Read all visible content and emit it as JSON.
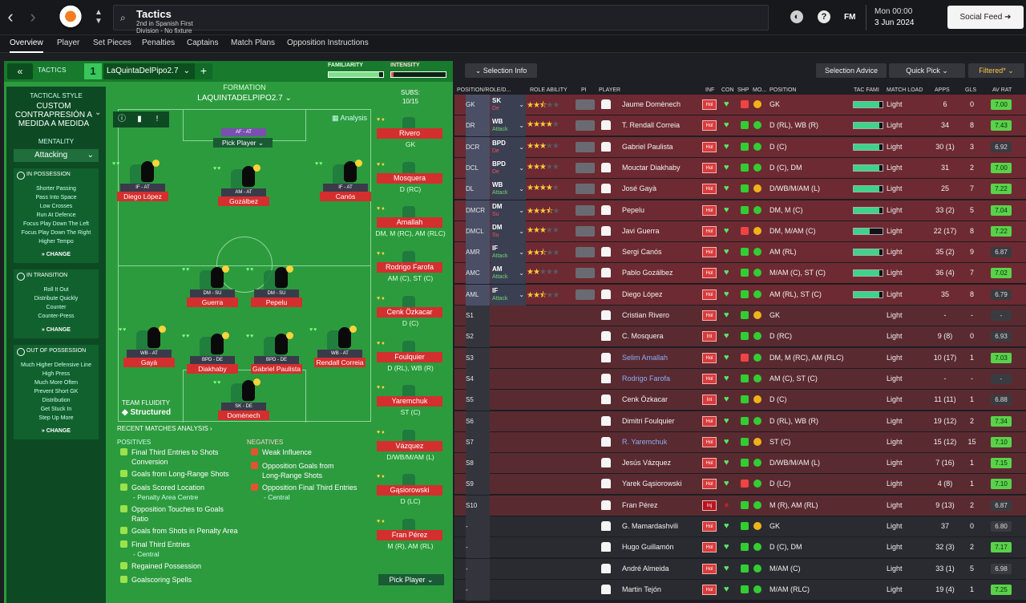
{
  "app": {
    "title": "Tactics",
    "subtitle": "2nd in Spanish First Division - No fixture scheduled.",
    "fm": "FM",
    "time": "Mon 00:00",
    "date": "3 Jun 2024",
    "social": "Social Feed",
    "back_icon": "chevron-left-icon",
    "fwd_icon": "chevron-right-icon"
  },
  "tabs": [
    "Overview",
    "Player",
    "Set Pieces",
    "Penalties",
    "Captains",
    "Match Plans",
    "Opposition Instructions"
  ],
  "tactic": {
    "label": "TACTICS",
    "number": "1",
    "name": "LaQuintaDelPipo2.7",
    "add": "+",
    "familiarity_label": "FAMILIARITY",
    "intensity_label": "INTENSITY",
    "familiarity": 0.92,
    "intensity": 0.05,
    "familiarity_color": "#7ee089",
    "intensity_color": "#e55050"
  },
  "style": {
    "title": "TACTICAL STYLE",
    "value": "CUSTOM CONTRAPRESIÓN A MEDIDA A MEDIDA",
    "mentality_label": "MENTALITY",
    "mentality": "Attacking",
    "possession": {
      "title": "IN POSSESSION",
      "items": [
        "Shorter Passing",
        "Pass Into Space",
        "Low Crosses",
        "Run At Defence",
        "Focus Play Down The Left",
        "Focus Play Down The Right",
        "Higher Tempo"
      ],
      "change": "CHANGE"
    },
    "transition": {
      "title": "IN TRANSITION",
      "items": [
        "Roll It Out",
        "Distribute Quickly",
        "Counter",
        "Counter-Press"
      ],
      "change": "CHANGE"
    },
    "oop": {
      "title": "OUT OF POSSESSION",
      "items": [
        "Much Higher Defensive Line",
        "High Press",
        "Much More Often",
        "Prevent Short GK",
        "Distribution",
        "Get Stuck In",
        "Step Up More"
      ],
      "change": "CHANGE"
    }
  },
  "formation": {
    "label": "FORMATION",
    "name": "LAQUINTADELPIPO2.7",
    "analysis": "Analysis",
    "gk_role": "AF - AT",
    "pick": "Pick Player"
  },
  "pitch_players": [
    {
      "role": "IF - AT",
      "name": "Diego López"
    },
    {
      "role": "AM - AT",
      "name": "Gozálbez"
    },
    {
      "role": "IF - AT",
      "name": "Canós"
    },
    {
      "role": "DM - SU",
      "name": "Guerra"
    },
    {
      "role": "DM - SU",
      "name": "Pepelu"
    },
    {
      "role": "WB - AT",
      "name": "Gayà"
    },
    {
      "role": "BPD - DE",
      "name": "Diakhaby"
    },
    {
      "role": "BPD - DE",
      "name": "Gabriel Paulista"
    },
    {
      "role": "WB - AT",
      "name": "Rendall Correia"
    },
    {
      "role": "SK - DE",
      "name": "Domènech"
    }
  ],
  "fluidity": {
    "label": "TEAM FLUIDITY",
    "value": "Structured"
  },
  "recent": {
    "title": "RECENT MATCHES ANALYSIS",
    "positives_label": "POSITIVES",
    "negatives_label": "NEGATIVES",
    "positives": [
      "Final Third Entries to Shots",
      "Conversion",
      "Goals from Long-Range Shots",
      "Goals Scored Location",
      "- Penalty Area Centre",
      "Opposition Touches to Goals",
      "Ratio",
      "Goals from Shots in Penalty Area",
      "Final Third Entries",
      "- Central",
      "Regained Possession",
      "Goalscoring Spells"
    ],
    "negatives": [
      "Weak Influence",
      "Opposition Goals from",
      "Long-Range Shots",
      "Opposition Final Third Entries",
      "- Central"
    ]
  },
  "subs": {
    "label": "SUBS:",
    "count": "10/15",
    "pick": "Pick Player",
    "list": [
      {
        "name": "Rivero",
        "pos": "GK"
      },
      {
        "name": "Mosquera",
        "pos": "D (RC)"
      },
      {
        "name": "Amallah",
        "pos": "DM, M (RC), AM (RLC)"
      },
      {
        "name": "Rodrigo Farofa",
        "pos": "AM (C), ST (C)"
      },
      {
        "name": "Cenk Özkacar",
        "pos": "D (C)"
      },
      {
        "name": "Foulquier",
        "pos": "D (RL), WB (R)"
      },
      {
        "name": "Yaremchuk",
        "pos": "ST (C)"
      },
      {
        "name": "Vázquez",
        "pos": "D/WB/M/AM (L)"
      },
      {
        "name": "Gąsiorowski",
        "pos": "D (LC)"
      },
      {
        "name": "Fran Pérez",
        "pos": "M (R), AM (RL)"
      }
    ]
  },
  "right": {
    "selection_info": "Selection Info",
    "selection_advice": "Selection Advice",
    "quick_pick": "Quick Pick",
    "filtered": "Filtered*",
    "headers": [
      "POSITION/ROLE/D...",
      "ROLE ABILITY",
      "PI",
      "PLAYER",
      "INF",
      "CON",
      "SHP",
      "MO...",
      "POSITION",
      "TAC FAMI",
      "MATCH LOAD",
      "APPS",
      "GLS",
      "AV RAT"
    ]
  },
  "rows": [
    {
      "slot": "GK",
      "role": "SK",
      "duty": "De",
      "stars": 2.5,
      "name": "Jaume Domènech",
      "inf": "Hol",
      "pos": "GK",
      "fam": 0.9,
      "load": "Light",
      "apps": "6",
      "gls": "0",
      "rat": "7.00",
      "link": false
    },
    {
      "slot": "DR",
      "role": "WB",
      "duty": "Attack",
      "stars": 4,
      "name": "T. Rendall Correia",
      "inf": "Hol",
      "pos": "D (RL), WB (R)",
      "fam": 0.9,
      "load": "Light",
      "apps": "34",
      "gls": "8",
      "rat": "7.43",
      "link": false
    },
    {
      "slot": "DCR",
      "role": "BPD",
      "duty": "De",
      "stars": 3,
      "name": "Gabriel Paulista",
      "inf": "Hol",
      "pos": "D (C)",
      "fam": 0.9,
      "load": "Light",
      "apps": "30 (1)",
      "gls": "3",
      "rat": "6.92",
      "link": false
    },
    {
      "slot": "DCL",
      "role": "BPD",
      "duty": "De",
      "stars": 3,
      "name": "Mouctar Diakhaby",
      "inf": "Hol",
      "pos": "D (C), DM",
      "fam": 0.9,
      "load": "Light",
      "apps": "31",
      "gls": "2",
      "rat": "7.00",
      "link": false
    },
    {
      "slot": "DL",
      "role": "WB",
      "duty": "Attack",
      "stars": 4,
      "name": "José Gayà",
      "inf": "Hol",
      "pos": "D/WB/M/AM (L)",
      "fam": 0.9,
      "load": "Light",
      "apps": "25",
      "gls": "7",
      "rat": "7.22",
      "link": false
    },
    {
      "slot": "DMCR",
      "role": "DM",
      "duty": "Su",
      "stars": 3.5,
      "name": "Pepelu",
      "inf": "Hol",
      "pos": "DM, M (C)",
      "fam": 0.9,
      "load": "Light",
      "apps": "33 (2)",
      "gls": "5",
      "rat": "7.04",
      "link": false
    },
    {
      "slot": "DMCL",
      "role": "DM",
      "duty": "Su",
      "stars": 3,
      "name": "Javi Guerra",
      "inf": "Hol",
      "pos": "DM, M/AM (C)",
      "fam": 0.55,
      "load": "Light",
      "apps": "22 (17)",
      "gls": "8",
      "rat": "7.22",
      "link": false
    },
    {
      "slot": "AMR",
      "role": "IF",
      "duty": "Attack",
      "stars": 2.5,
      "name": "Sergi Canós",
      "inf": "Hol",
      "pos": "AM (RL)",
      "fam": 0.9,
      "load": "Light",
      "apps": "35 (2)",
      "gls": "9",
      "rat": "6.87",
      "link": false
    },
    {
      "slot": "AMC",
      "role": "AM",
      "duty": "Attack",
      "stars": 2,
      "name": "Pablo Gozálbez",
      "inf": "Hol",
      "pos": "M/AM (C), ST (C)",
      "fam": 0.9,
      "load": "Light",
      "apps": "36 (4)",
      "gls": "7",
      "rat": "7.02",
      "link": false
    },
    {
      "slot": "AML",
      "role": "IF",
      "duty": "Attack",
      "stars": 2.5,
      "name": "Diego López",
      "inf": "Hol",
      "pos": "AM (RL), ST (C)",
      "fam": 0.9,
      "load": "Light",
      "apps": "35",
      "gls": "8",
      "rat": "6.79",
      "link": false
    },
    {
      "slot": "S1",
      "role": "",
      "duty": "",
      "stars": 0,
      "name": "Cristian Rivero",
      "inf": "Hol",
      "pos": "GK",
      "fam": 0,
      "load": "Light",
      "apps": "-",
      "gls": "-",
      "rat": "-",
      "link": false
    },
    {
      "slot": "S2",
      "role": "",
      "duty": "",
      "stars": 0,
      "name": "C. Mosquera",
      "inf": "Int",
      "pos": "D (RC)",
      "fam": 0,
      "load": "Light",
      "apps": "9 (8)",
      "gls": "0",
      "rat": "6.93",
      "link": false
    },
    {
      "slot": "S3",
      "role": "",
      "duty": "",
      "stars": 0,
      "name": "Selim Amallah",
      "inf": "Hol",
      "pos": "DM, M (RC), AM (RLC)",
      "fam": 0,
      "load": "Light",
      "apps": "10 (17)",
      "gls": "1",
      "rat": "7.03",
      "link": true
    },
    {
      "slot": "S4",
      "role": "",
      "duty": "",
      "stars": 0,
      "name": "Rodrigo Farofa",
      "inf": "Hol",
      "pos": "AM (C), ST (C)",
      "fam": 0,
      "load": "Light",
      "apps": "-",
      "gls": "-",
      "rat": "-",
      "link": true
    },
    {
      "slot": "S5",
      "role": "",
      "duty": "",
      "stars": 0,
      "name": "Cenk Özkacar",
      "inf": "Int",
      "pos": "D (C)",
      "fam": 0,
      "load": "Light",
      "apps": "11 (11)",
      "gls": "1",
      "rat": "6.88",
      "link": false
    },
    {
      "slot": "S6",
      "role": "",
      "duty": "",
      "stars": 0,
      "name": "Dimitri Foulquier",
      "inf": "Hol",
      "pos": "D (RL), WB (R)",
      "fam": 0,
      "load": "Light",
      "apps": "19 (12)",
      "gls": "2",
      "rat": "7.34",
      "link": false
    },
    {
      "slot": "S7",
      "role": "",
      "duty": "",
      "stars": 0,
      "name": "R. Yaremchuk",
      "inf": "Hol",
      "pos": "ST (C)",
      "fam": 0,
      "load": "Light",
      "apps": "15 (12)",
      "gls": "15",
      "rat": "7.10",
      "link": true
    },
    {
      "slot": "S8",
      "role": "",
      "duty": "",
      "stars": 0,
      "name": "Jesús Vázquez",
      "inf": "Hol",
      "pos": "D/WB/M/AM (L)",
      "fam": 0,
      "load": "Light",
      "apps": "7 (16)",
      "gls": "1",
      "rat": "7.15",
      "link": false
    },
    {
      "slot": "S9",
      "role": "",
      "duty": "",
      "stars": 0,
      "name": "Yarek Gąsiorowski",
      "inf": "Hol",
      "pos": "D (LC)",
      "fam": 0,
      "load": "Light",
      "apps": "4 (8)",
      "gls": "1",
      "rat": "7.10",
      "link": false
    },
    {
      "slot": "S10",
      "role": "",
      "duty": "",
      "stars": 0,
      "name": "Fran Pérez",
      "inf": "Inj",
      "pos": "M (R), AM (RL)",
      "fam": 0,
      "load": "Light",
      "apps": "9 (13)",
      "gls": "2",
      "rat": "6.87",
      "link": false
    },
    {
      "slot": "-",
      "role": "",
      "duty": "",
      "stars": 0,
      "name": "G. Mamardashvili",
      "inf": "Hol",
      "pos": "GK",
      "fam": 0,
      "load": "Light",
      "apps": "37",
      "gls": "0",
      "rat": "6.80",
      "link": false
    },
    {
      "slot": "-",
      "role": "",
      "duty": "",
      "stars": 0,
      "name": "Hugo Guillamón",
      "inf": "Hol",
      "pos": "D (C), DM",
      "fam": 0,
      "load": "Light",
      "apps": "32 (3)",
      "gls": "2",
      "rat": "7.17",
      "link": false
    },
    {
      "slot": "-",
      "role": "",
      "duty": "",
      "stars": 0,
      "name": "André Almeida",
      "inf": "Hol",
      "pos": "M/AM (C)",
      "fam": 0,
      "load": "Light",
      "apps": "33 (1)",
      "gls": "5",
      "rat": "6.98",
      "link": false
    },
    {
      "slot": "-",
      "role": "",
      "duty": "",
      "stars": 0,
      "name": "Martin Tejón",
      "inf": "Hol",
      "pos": "M/AM (RLC)",
      "fam": 0,
      "load": "Light",
      "apps": "19 (4)",
      "gls": "1",
      "rat": "7.25",
      "link": false
    }
  ]
}
